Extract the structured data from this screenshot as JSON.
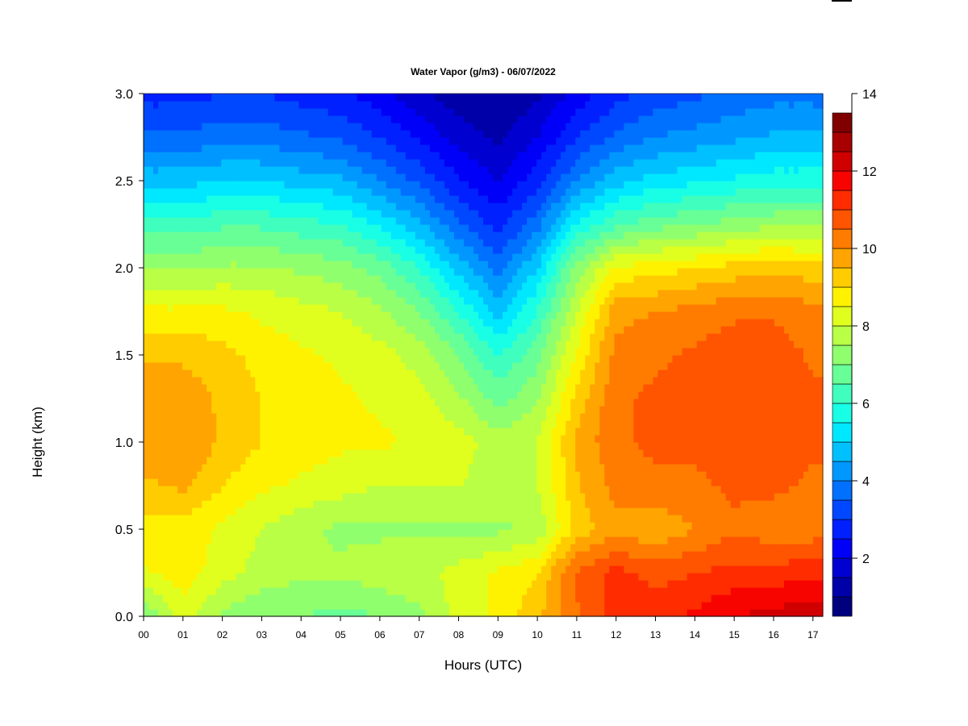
{
  "chart_data": {
    "type": "heatmap",
    "title": "Water Vapor (g/m3) - 06/07/2022",
    "xlabel": "Hours (UTC)",
    "ylabel": "Height (km)",
    "xlim": [
      0,
      17.25
    ],
    "ylim": [
      0,
      3
    ],
    "x_ticks": [
      "00",
      "01",
      "02",
      "03",
      "04",
      "05",
      "06",
      "07",
      "08",
      "09",
      "10",
      "11",
      "12",
      "13",
      "14",
      "15",
      "16",
      "17"
    ],
    "y_ticks": [
      "0.0",
      "0.5",
      "1.0",
      "1.5",
      "2.0",
      "2.5",
      "3.0"
    ],
    "colorbar": {
      "min": 0.5,
      "max": 14,
      "step": 0.5,
      "ticks": [
        "2",
        "4",
        "6",
        "8",
        "10",
        "12",
        "14"
      ],
      "colors": [
        "#00007f",
        "#0000a8",
        "#0000d0",
        "#0000f8",
        "#0020ff",
        "#0048ff",
        "#0070ff",
        "#0098ff",
        "#00c0ff",
        "#00e8ff",
        "#18ffe6",
        "#40ffbe",
        "#68ff96",
        "#90ff6e",
        "#b8ff46",
        "#e0ff1e",
        "#fff200",
        "#ffcc00",
        "#ffa400",
        "#ff7c00",
        "#ff5400",
        "#ff2c00",
        "#f80400",
        "#d00000",
        "#a80000",
        "#800000"
      ]
    },
    "x": [
      0,
      1,
      2,
      3,
      4,
      5,
      6,
      7,
      8,
      9,
      10,
      11,
      12,
      13,
      14,
      15,
      16,
      17
    ],
    "y": [
      0,
      0.25,
      0.5,
      0.75,
      1.0,
      1.25,
      1.5,
      1.75,
      2.0,
      2.25,
      2.5,
      2.75,
      3.0
    ],
    "z": [
      [
        7.0,
        8.2,
        7.4,
        7.0,
        7.0,
        6.8,
        7.0,
        7.4,
        8.2,
        8.6,
        9.4,
        10.4,
        11.2,
        11.4,
        11.6,
        12.0,
        12.2,
        12.4
      ],
      [
        8.4,
        8.8,
        8.2,
        7.8,
        7.6,
        7.6,
        7.8,
        7.8,
        8.2,
        8.6,
        9.0,
        10.6,
        11.2,
        10.8,
        11.0,
        11.2,
        11.2,
        11.4
      ],
      [
        8.8,
        8.8,
        8.4,
        8.0,
        7.6,
        7.4,
        7.4,
        7.4,
        7.4,
        7.4,
        7.6,
        9.2,
        9.8,
        9.6,
        10.0,
        10.4,
        10.2,
        10.2
      ],
      [
        9.4,
        9.6,
        9.0,
        8.6,
        8.4,
        8.2,
        8.0,
        8.0,
        8.0,
        7.8,
        8.0,
        9.4,
        10.2,
        10.4,
        10.4,
        10.6,
        10.6,
        10.4
      ],
      [
        9.8,
        10.0,
        9.4,
        9.0,
        8.8,
        8.6,
        8.6,
        8.4,
        8.2,
        7.8,
        8.0,
        9.6,
        10.4,
        10.6,
        10.6,
        10.8,
        10.8,
        10.6
      ],
      [
        9.8,
        9.8,
        9.4,
        9.0,
        8.8,
        8.6,
        8.4,
        8.2,
        7.6,
        6.8,
        7.4,
        9.2,
        10.4,
        10.6,
        10.8,
        10.8,
        10.8,
        10.6
      ],
      [
        9.4,
        9.4,
        9.2,
        8.8,
        8.6,
        8.4,
        8.2,
        7.8,
        7.0,
        6.0,
        6.8,
        8.6,
        10.2,
        10.4,
        10.6,
        10.8,
        10.8,
        10.4
      ],
      [
        8.6,
        8.6,
        8.6,
        8.4,
        8.2,
        8.0,
        7.6,
        7.0,
        6.0,
        4.8,
        6.0,
        8.0,
        9.8,
        10.0,
        10.2,
        10.4,
        10.4,
        10.2
      ],
      [
        7.4,
        7.4,
        7.6,
        7.6,
        7.4,
        7.2,
        6.8,
        6.0,
        4.8,
        3.8,
        5.0,
        7.2,
        8.6,
        8.8,
        9.0,
        9.2,
        9.4,
        9.2
      ],
      [
        6.2,
        6.2,
        6.4,
        6.4,
        6.2,
        6.0,
        5.4,
        4.6,
        3.6,
        2.8,
        3.8,
        5.6,
        6.4,
        6.8,
        7.0,
        7.2,
        7.4,
        7.4
      ],
      [
        4.8,
        4.8,
        5.0,
        5.0,
        4.8,
        4.6,
        4.0,
        3.4,
        2.6,
        2.0,
        2.8,
        4.0,
        4.8,
        5.2,
        5.4,
        5.6,
        5.8,
        5.8
      ],
      [
        3.6,
        3.6,
        3.8,
        3.8,
        3.6,
        3.4,
        3.0,
        2.4,
        1.8,
        1.4,
        2.0,
        3.0,
        3.6,
        4.0,
        4.2,
        4.4,
        4.6,
        4.6
      ],
      [
        2.8,
        2.8,
        3.0,
        3.0,
        2.8,
        2.6,
        2.2,
        1.6,
        1.2,
        1.0,
        1.4,
        2.2,
        2.8,
        3.2,
        3.4,
        3.6,
        3.8,
        3.8
      ]
    ]
  }
}
